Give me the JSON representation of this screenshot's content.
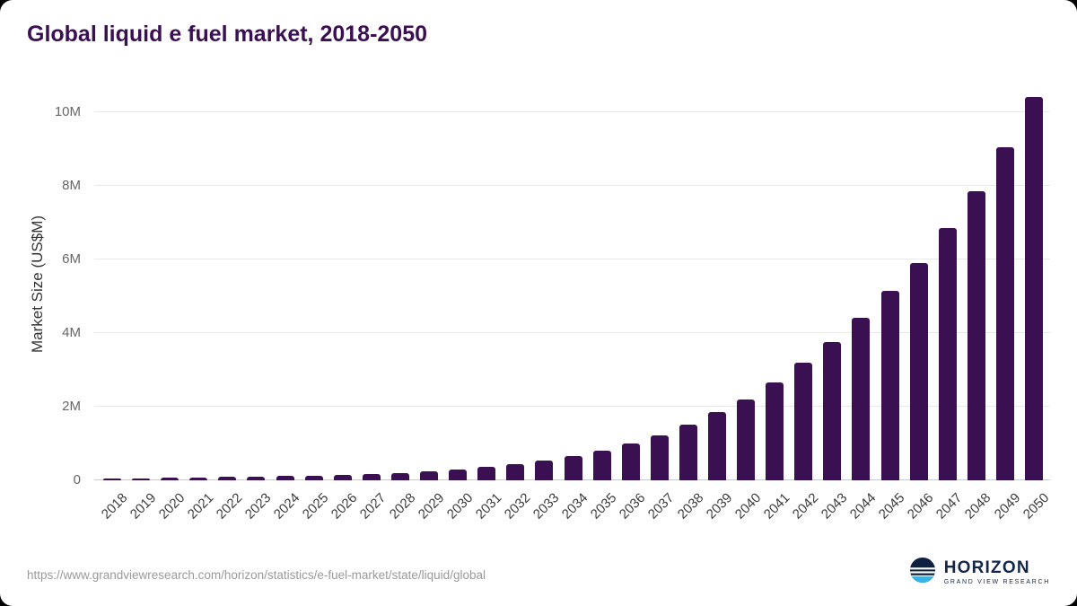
{
  "title": "Global liquid e fuel market, 2018-2050",
  "chart_data": {
    "type": "bar",
    "title": "Global liquid e fuel market, 2018-2050",
    "xlabel": "",
    "ylabel": "Market Size (US$M)",
    "categories": [
      2018,
      2019,
      2020,
      2021,
      2022,
      2023,
      2024,
      2025,
      2026,
      2027,
      2028,
      2029,
      2030,
      2031,
      2032,
      2033,
      2034,
      2035,
      2036,
      2037,
      2038,
      2039,
      2040,
      2041,
      2042,
      2043,
      2044,
      2045,
      2046,
      2047,
      2048,
      2049,
      2050
    ],
    "values": [
      0.05,
      0.06,
      0.07,
      0.08,
      0.09,
      0.1,
      0.12,
      0.13,
      0.15,
      0.17,
      0.2,
      0.24,
      0.29,
      0.36,
      0.44,
      0.54,
      0.66,
      0.81,
      1.0,
      1.22,
      1.5,
      1.85,
      2.2,
      2.65,
      3.2,
      3.75,
      4.4,
      5.15,
      5.9,
      6.85,
      7.85,
      9.05,
      10.4
    ],
    "values_unit": "US$M (millions)",
    "ylim": [
      0,
      10.6
    ],
    "yticks": [
      0,
      2,
      4,
      6,
      8,
      10
    ],
    "ytick_labels": [
      "0",
      "2M",
      "4M",
      "6M",
      "8M",
      "10M"
    ],
    "grid": true,
    "legend": "none",
    "bar_color": "#3b1053"
  },
  "footer": {
    "source_url": "https://www.grandviewresearch.com/horizon/statistics/e-fuel-market/state/liquid/global",
    "logo_name": "HORIZON",
    "logo_subtitle": "GRAND VIEW RESEARCH"
  }
}
